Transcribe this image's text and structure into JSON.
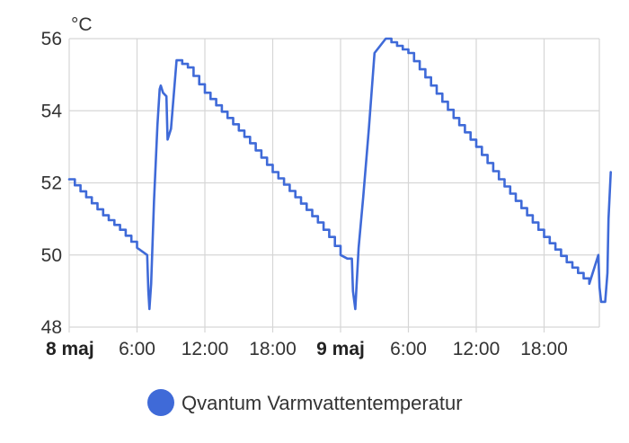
{
  "chart_data": {
    "type": "line",
    "unit_label": "°C",
    "ylim": [
      48,
      56
    ],
    "yticks": [
      48,
      50,
      52,
      54,
      56
    ],
    "xlim": [
      0,
      66
    ],
    "xticks": [
      {
        "t": 0,
        "label": "8 maj",
        "major": true
      },
      {
        "t": 6,
        "label": "6:00",
        "major": false
      },
      {
        "t": 12,
        "label": "12:00",
        "major": false
      },
      {
        "t": 18,
        "label": "18:00",
        "major": false
      },
      {
        "t": 24,
        "label": "9 maj",
        "major": true
      },
      {
        "t": 30,
        "label": "6:00",
        "major": false
      },
      {
        "t": 36,
        "label": "12:00",
        "major": false
      },
      {
        "t": 42,
        "label": "18:00",
        "major": false
      }
    ],
    "grid": true,
    "legend_position": "bottom",
    "series": [
      {
        "name": "Qvantum Varmvattentemperatur",
        "color": "#3f6ad8",
        "x": [
          0.0,
          1.5,
          3.0,
          4.5,
          6.0,
          6.9,
          7.0,
          7.1,
          7.25,
          7.5,
          7.8,
          8.0,
          8.1,
          8.3,
          8.6,
          8.7,
          9.0,
          9.5,
          10.5,
          12.0,
          14.0,
          16.0,
          18.0,
          20.0,
          22.0,
          23.0,
          24.0,
          24.6,
          25.0,
          25.1,
          25.3,
          25.6,
          26.0,
          26.5,
          27.0,
          28.0,
          30.0,
          32.0,
          34.0,
          36.0,
          38.0,
          40.0,
          42.0,
          44.0,
          46.0,
          46.8,
          46.9,
          47.05,
          47.4,
          47.6,
          47.7,
          47.9
        ],
        "y": [
          52.1,
          51.6,
          51.1,
          50.7,
          50.2,
          50.0,
          49.0,
          48.5,
          49.2,
          51.5,
          53.6,
          54.6,
          54.7,
          54.5,
          54.4,
          53.2,
          53.5,
          55.4,
          55.2,
          54.5,
          53.8,
          53.1,
          52.3,
          51.6,
          50.9,
          50.5,
          50.0,
          49.9,
          49.9,
          49.0,
          48.5,
          50.2,
          51.6,
          53.5,
          55.6,
          56.0,
          55.6,
          54.7,
          53.8,
          53.0,
          52.1,
          51.3,
          50.5,
          49.8,
          49.2,
          50.0,
          49.1,
          48.7,
          48.7,
          49.5,
          51.0,
          52.3
        ]
      }
    ]
  }
}
